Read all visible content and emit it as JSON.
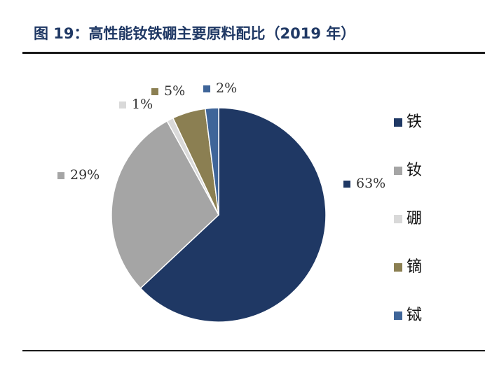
{
  "header": {
    "title": "图 19：高性能钕铁硼主要原料配比（2019 年）"
  },
  "chart_data": {
    "type": "pie",
    "title": "",
    "slices": [
      {
        "label": "铁",
        "value": 63,
        "value_label": "63%",
        "color": "#1f3864"
      },
      {
        "label": "钕",
        "value": 29,
        "value_label": "29%",
        "color": "#a5a5a5"
      },
      {
        "label": "硼",
        "value": 1,
        "value_label": "1%",
        "color": "#d9d9d9"
      },
      {
        "label": "镝",
        "value": 5,
        "value_label": "5%",
        "color": "#8b7f52"
      },
      {
        "label": "铽",
        "value": 2,
        "value_label": "2%",
        "color": "#3f6599"
      }
    ],
    "legend_position": "right",
    "start_angle": "12 o'clock",
    "direction": "clockwise"
  }
}
